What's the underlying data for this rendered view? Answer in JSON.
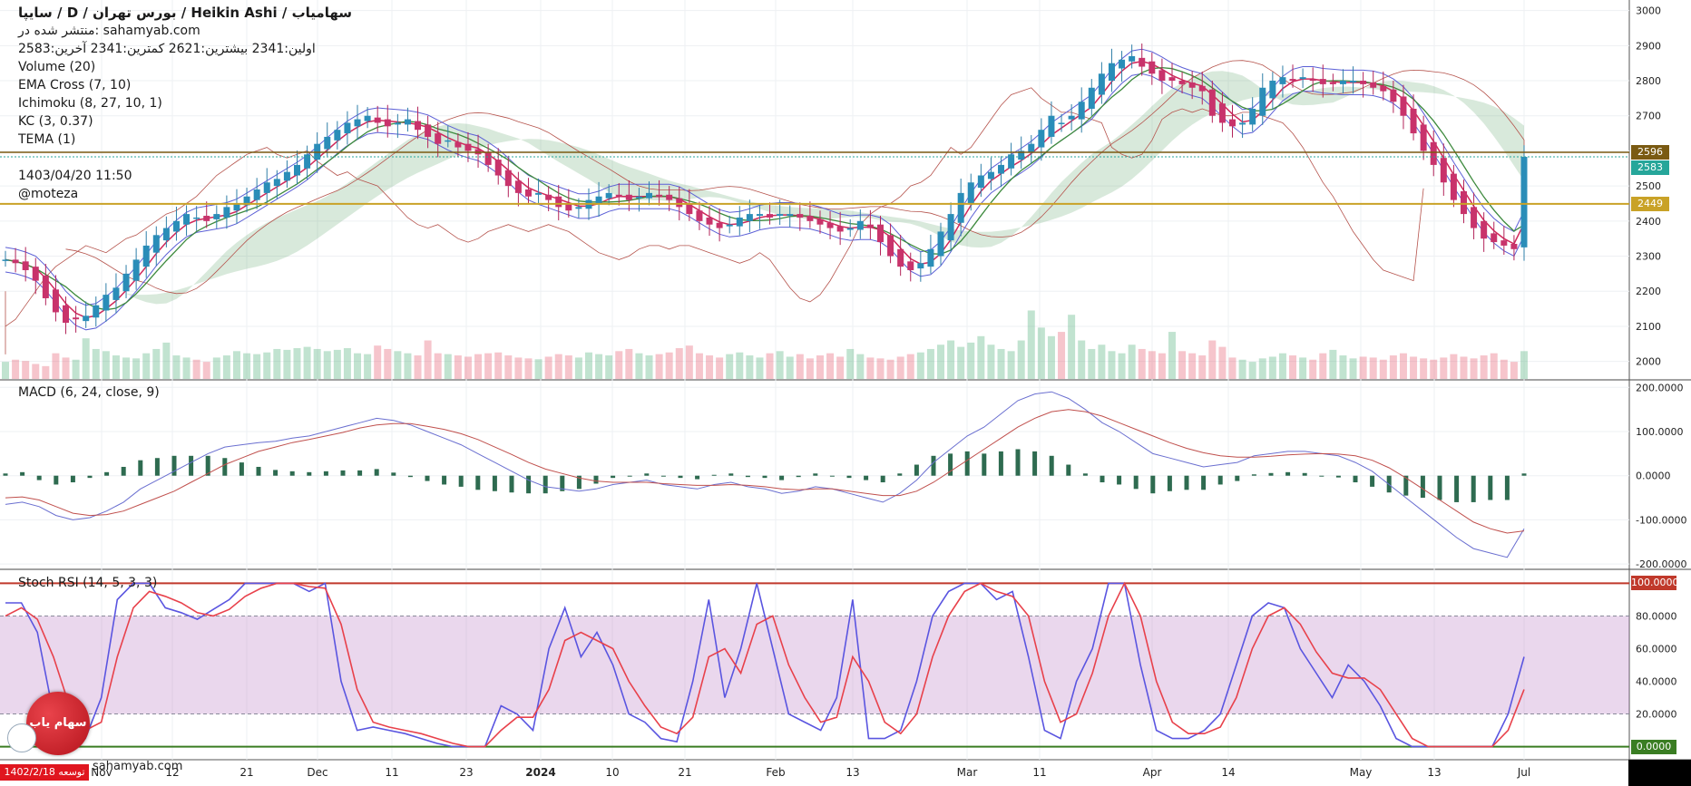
{
  "header": {
    "title": "سایپا / D / بورس تهران / Heikin Ashi / سهامیاب",
    "published": "منتشر شده در: sahamyab.com",
    "ohlc": "اولین:2341  بیشترین:2621  کمترین:2341  آخرین:2583",
    "indicators": [
      "Volume (20)",
      "EMA Cross (7, 10)",
      "Ichimoku (8, 27, 10, 1)",
      "KC (3, 0.37)",
      "TEMA (1)"
    ],
    "timestamp": "1403/04/20 11:50",
    "author": "@moteza"
  },
  "macd_title": "MACD (6, 24, close, 9)",
  "stoch_title": "Stoch RSI (14, 5, 3, 3)",
  "price_tags": [
    {
      "label": "2596",
      "value": 2596,
      "color": "#7a5a12"
    },
    {
      "label": "2583",
      "value": 2583,
      "color": "#26a69a"
    },
    {
      "label": "2449",
      "value": 2449,
      "color": "#c9a227"
    }
  ],
  "stoch_tags": [
    {
      "label": "100.0000",
      "value": 100,
      "color": "#c0392b"
    },
    {
      "label": "0.0000",
      "value": 0,
      "color": "#3a7d23"
    }
  ],
  "time_axis": [
    "Nov",
    "12",
    "21",
    "Dec",
    "11",
    "23",
    "2024",
    "10",
    "21",
    "Feb",
    "13",
    "Mar",
    "11",
    "Apr",
    "14",
    "May",
    "13",
    "Jul"
  ],
  "branding": {
    "logo_text": "سهام یاب",
    "date_badge": "1402/2/18 توسعه",
    "site": "sahamyab.com"
  },
  "chart_data": [
    {
      "type": "candlestick",
      "title": "سایپا",
      "y_ticks": [
        2000,
        2100,
        2200,
        2300,
        2400,
        2500,
        2600,
        2700,
        2800,
        2900,
        3000
      ],
      "ylim": [
        1950,
        3030
      ],
      "horizontal_lines": [
        2449,
        2596,
        2583
      ],
      "close_series": [
        2290,
        2280,
        2260,
        2230,
        2180,
        2140,
        2110,
        2120,
        2130,
        2160,
        2190,
        2210,
        2250,
        2290,
        2330,
        2360,
        2380,
        2400,
        2420,
        2410,
        2400,
        2420,
        2440,
        2450,
        2470,
        2490,
        2510,
        2520,
        2540,
        2560,
        2590,
        2620,
        2640,
        2660,
        2680,
        2690,
        2700,
        2680,
        2670,
        2680,
        2690,
        2660,
        2640,
        2620,
        2630,
        2610,
        2600,
        2590,
        2560,
        2530,
        2500,
        2480,
        2470,
        2480,
        2460,
        2440,
        2430,
        2440,
        2460,
        2470,
        2480,
        2470,
        2460,
        2470,
        2480,
        2470,
        2460,
        2440,
        2420,
        2400,
        2390,
        2380,
        2390,
        2410,
        2420,
        2420,
        2410,
        2420,
        2420,
        2410,
        2400,
        2390,
        2380,
        2370,
        2380,
        2400,
        2380,
        2340,
        2300,
        2270,
        2260,
        2280,
        2320,
        2370,
        2420,
        2480,
        2510,
        2530,
        2540,
        2560,
        2590,
        2600,
        2620,
        2660,
        2700,
        2680,
        2700,
        2740,
        2780,
        2820,
        2850,
        2860,
        2870,
        2840,
        2820,
        2800,
        2800,
        2790,
        2780,
        2770,
        2700,
        2680,
        2670,
        2680,
        2720,
        2780,
        2800,
        2810,
        2800,
        2810,
        2800,
        2790,
        2790,
        2800,
        2800,
        2790,
        2780,
        2770,
        2740,
        2700,
        2650,
        2600,
        2560,
        2510,
        2460,
        2420,
        2380,
        2350,
        2340,
        2330,
        2320,
        2583
      ],
      "volume": [
        40,
        45,
        42,
        35,
        30,
        60,
        50,
        45,
        95,
        70,
        65,
        55,
        50,
        48,
        60,
        70,
        85,
        55,
        50,
        45,
        40,
        50,
        55,
        65,
        60,
        58,
        62,
        70,
        68,
        72,
        75,
        70,
        65,
        68,
        72,
        60,
        58,
        78,
        70,
        65,
        60,
        55,
        90,
        60,
        58,
        55,
        52,
        58,
        60,
        62,
        55,
        50,
        48,
        46,
        52,
        58,
        55,
        50,
        62,
        58,
        55,
        65,
        70,
        60,
        55,
        58,
        62,
        72,
        78,
        60,
        55,
        50,
        58,
        62,
        55,
        50,
        60,
        65,
        52,
        58,
        48,
        55,
        60,
        52,
        70,
        58,
        50,
        48,
        45,
        52,
        58,
        62,
        70,
        80,
        90,
        75,
        85,
        100,
        80,
        70,
        65,
        90,
        160,
        120,
        100,
        110,
        150,
        90,
        70,
        80,
        65,
        60,
        80,
        70,
        65,
        60,
        110,
        65,
        60,
        55,
        90,
        75,
        50,
        45,
        40,
        48,
        52,
        60,
        55,
        50,
        45,
        60,
        68,
        55,
        48,
        52,
        50,
        45,
        55,
        60,
        52,
        48,
        45,
        50,
        58,
        52,
        48,
        55,
        60,
        45,
        40,
        65
      ],
      "volume_ylim": [
        0,
        250
      ]
    },
    {
      "type": "line",
      "title": "MACD (6, 24, close, 9)",
      "y_ticks": [
        -200,
        -100,
        0,
        100,
        200
      ],
      "ylim": [
        -210,
        215
      ],
      "macd": [
        -65,
        -60,
        -70,
        -90,
        -100,
        -95,
        -80,
        -60,
        -30,
        -10,
        10,
        30,
        50,
        65,
        70,
        75,
        78,
        85,
        90,
        100,
        110,
        120,
        130,
        125,
        115,
        100,
        85,
        70,
        50,
        30,
        10,
        -10,
        -25,
        -30,
        -35,
        -30,
        -20,
        -15,
        -10,
        -20,
        -25,
        -30,
        -20,
        -15,
        -25,
        -30,
        -40,
        -35,
        -25,
        -30,
        -40,
        -50,
        -60,
        -40,
        -10,
        30,
        60,
        90,
        110,
        140,
        170,
        185,
        190,
        175,
        150,
        120,
        100,
        75,
        50,
        40,
        30,
        20,
        25,
        30,
        45,
        50,
        55,
        55,
        50,
        45,
        30,
        10,
        -20,
        -50,
        -80,
        -110,
        -140,
        -165,
        -175,
        -185,
        -120
      ],
      "signal": [
        -50,
        -48,
        -55,
        -70,
        -85,
        -90,
        -88,
        -80,
        -65,
        -50,
        -35,
        -15,
        5,
        25,
        40,
        55,
        65,
        75,
        82,
        90,
        98,
        108,
        115,
        118,
        118,
        112,
        105,
        95,
        82,
        65,
        48,
        30,
        15,
        5,
        -5,
        -12,
        -15,
        -15,
        -15,
        -18,
        -20,
        -22,
        -22,
        -20,
        -22,
        -25,
        -30,
        -32,
        -30,
        -30,
        -35,
        -40,
        -45,
        -45,
        -35,
        -15,
        10,
        35,
        60,
        85,
        110,
        130,
        145,
        150,
        145,
        135,
        120,
        105,
        90,
        75,
        62,
        52,
        45,
        42,
        42,
        44,
        47,
        49,
        50,
        49,
        45,
        35,
        18,
        -5,
        -30,
        -55,
        -80,
        -105,
        -120,
        -130,
        -125
      ],
      "hist": [
        5,
        8,
        -10,
        -20,
        -15,
        -5,
        8,
        20,
        35,
        40,
        45,
        45,
        45,
        40,
        30,
        20,
        13,
        10,
        8,
        10,
        12,
        12,
        15,
        7,
        -3,
        -12,
        -20,
        -25,
        -32,
        -35,
        -38,
        -40,
        -40,
        -35,
        -30,
        -18,
        -5,
        0,
        5,
        -2,
        -5,
        -8,
        2,
        5,
        -3,
        -5,
        -10,
        -3,
        5,
        0,
        -5,
        -10,
        -15,
        5,
        25,
        45,
        50,
        55,
        50,
        55,
        60,
        55,
        45,
        25,
        5,
        -15,
        -20,
        -30,
        -40,
        -35,
        -32,
        -32,
        -20,
        -12,
        3,
        6,
        8,
        6,
        0,
        -4,
        -15,
        -25,
        -38,
        -45,
        -50,
        -55,
        -60,
        -60,
        -55,
        -55,
        5
      ]
    },
    {
      "type": "line",
      "title": "Stoch RSI (14, 5, 3, 3)",
      "y_ticks": [
        0,
        20,
        40,
        60,
        80,
        100
      ],
      "ylim": [
        -8,
        108
      ],
      "band": [
        20,
        80
      ],
      "k": [
        88,
        88,
        70,
        20,
        5,
        5,
        30,
        90,
        100,
        100,
        85,
        82,
        78,
        84,
        90,
        100,
        100,
        100,
        100,
        95,
        100,
        40,
        10,
        12,
        10,
        8,
        5,
        2,
        0,
        0,
        0,
        25,
        20,
        10,
        60,
        85,
        55,
        70,
        50,
        20,
        15,
        5,
        3,
        40,
        90,
        30,
        60,
        100,
        60,
        20,
        15,
        10,
        30,
        90,
        5,
        5,
        10,
        40,
        80,
        95,
        100,
        100,
        90,
        95,
        55,
        10,
        5,
        40,
        60,
        100,
        100,
        50,
        10,
        5,
        5,
        10,
        20,
        50,
        80,
        88,
        85,
        60,
        45,
        30,
        50,
        40,
        25,
        5,
        0,
        0,
        0,
        0,
        0,
        0,
        20,
        55
      ],
      "d": [
        80,
        85,
        78,
        55,
        25,
        10,
        15,
        55,
        85,
        95,
        92,
        88,
        82,
        80,
        84,
        92,
        97,
        100,
        100,
        98,
        97,
        75,
        35,
        15,
        12,
        10,
        8,
        5,
        2,
        0,
        0,
        10,
        18,
        18,
        35,
        65,
        70,
        65,
        60,
        40,
        25,
        12,
        8,
        18,
        55,
        60,
        45,
        75,
        80,
        50,
        30,
        15,
        18,
        55,
        40,
        15,
        8,
        20,
        55,
        80,
        95,
        100,
        95,
        92,
        80,
        40,
        15,
        20,
        45,
        80,
        100,
        80,
        40,
        15,
        8,
        8,
        12,
        30,
        60,
        80,
        85,
        75,
        58,
        45,
        42,
        42,
        35,
        20,
        5,
        0,
        0,
        0,
        0,
        0,
        10,
        35
      ]
    }
  ]
}
